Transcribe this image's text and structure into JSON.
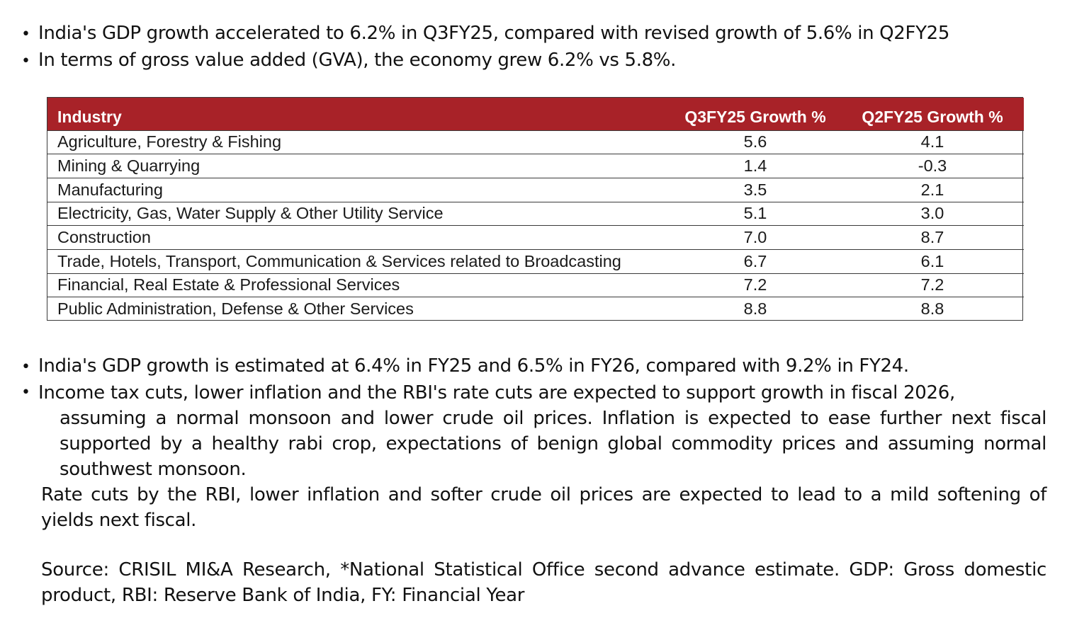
{
  "top_bullets": [
    "India's GDP growth accelerated to 6.2% in Q3FY25, compared with revised growth of 5.6% in Q2FY25",
    "In terms of gross value added (GVA), the economy grew 6.2% vs 5.8%."
  ],
  "table": {
    "header_color": "#a82228",
    "columns": [
      "Industry",
      "Q3FY25 Growth %",
      "Q2FY25 Growth %"
    ],
    "rows": [
      {
        "industry": "Agriculture, Forestry & Fishing",
        "q3": "5.6",
        "q2": "4.1"
      },
      {
        "industry": "Mining & Quarrying",
        "q3": "1.4",
        "q2": "-0.3"
      },
      {
        "industry": "Manufacturing",
        "q3": "3.5",
        "q2": "2.1"
      },
      {
        "industry": "Electricity, Gas, Water Supply & Other Utility Service",
        "q3": "5.1",
        "q2": "3.0"
      },
      {
        "industry": "Construction",
        "q3": "7.0",
        "q2": "8.7"
      },
      {
        "industry": "Trade, Hotels, Transport, Communication & Services related to Broadcasting",
        "q3": "6.7",
        "q2": "6.1"
      },
      {
        "industry": "Financial, Real Estate & Professional Services",
        "q3": "7.2",
        "q2": "7.2"
      },
      {
        "industry": "Public Administration, Defense & Other Services",
        "q3": "8.8",
        "q2": "8.8"
      }
    ]
  },
  "bottom_bullets": {
    "first": "India's GDP growth is estimated at 6.4% in FY25 and 6.5% in FY26, compared with 9.2% in FY24.",
    "second_line1": "Income tax cuts, lower inflation and the RBI's rate cuts are expected to support growth in fiscal 2026,",
    "second_rest": "assuming a normal monsoon and lower crude oil prices. Inflation is expected to ease further next fiscal supported by a healthy rabi crop, expectations of benign global commodity prices and assuming normal southwest monsoon.",
    "rate_para": "Rate cuts by the RBI, lower inflation and softer crude oil prices are expected to lead to a mild softening of yields next fiscal."
  },
  "source": "Source: CRISIL MI&A Research, *National Statistical Office second advance estimate. GDP: Gross domestic product, RBI: Reserve Bank of India, FY: Financial Year"
}
